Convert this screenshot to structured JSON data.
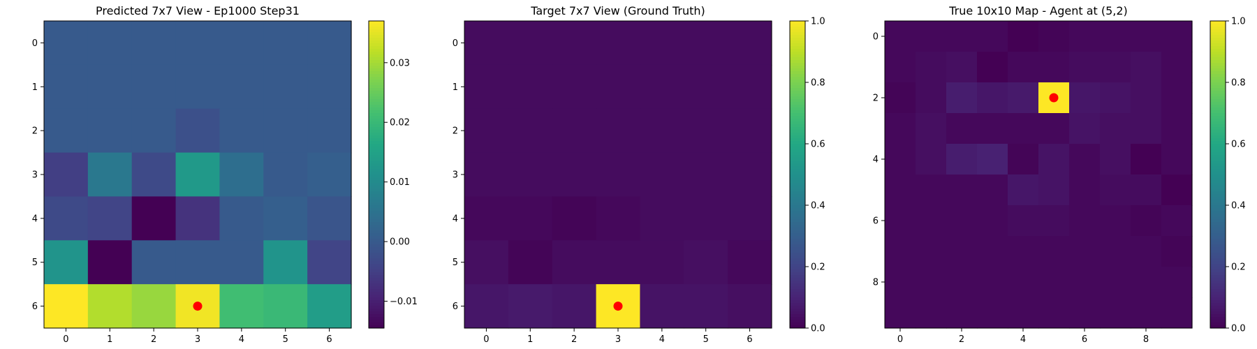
{
  "chart_data": [
    {
      "type": "heatmap",
      "title": "Predicted 7x7 View - Ep1000 Step31",
      "xticks": [
        0,
        1,
        2,
        3,
        4,
        5,
        6
      ],
      "yticks": [
        0,
        1,
        2,
        3,
        4,
        5,
        6
      ],
      "colormap": "viridis",
      "vmin": -0.0145,
      "vmax": 0.037,
      "colorbar_ticks": [
        "0.03",
        "0.02",
        "0.01",
        "0.00",
        "−0.01"
      ],
      "colorbar_tick_values": [
        0.03,
        0.02,
        0.01,
        0.0,
        -0.01
      ],
      "values": [
        [
          0.0,
          0.0,
          0.0,
          0.0,
          0.0,
          0.0,
          0.0
        ],
        [
          0.0,
          0.0,
          0.0,
          0.0,
          0.0,
          0.0,
          0.0
        ],
        [
          0.0,
          0.0,
          0.0,
          -0.002,
          0.0,
          0.0,
          0.0
        ],
        [
          -0.005,
          0.006,
          -0.003,
          0.013,
          0.004,
          0.0,
          0.001
        ],
        [
          -0.003,
          -0.004,
          -0.0145,
          -0.007,
          0.0,
          0.001,
          -0.001
        ],
        [
          0.012,
          -0.0145,
          0.0,
          0.0,
          0.0,
          0.012,
          -0.004
        ],
        [
          0.037,
          0.031,
          0.029,
          0.036,
          0.021,
          0.02,
          0.014
        ]
      ],
      "marker": {
        "x": 3,
        "y": 6,
        "color": "#ff0000"
      }
    },
    {
      "type": "heatmap",
      "title": "Target 7x7 View (Ground Truth)",
      "xticks": [
        0,
        1,
        2,
        3,
        4,
        5,
        6
      ],
      "yticks": [
        0,
        1,
        2,
        3,
        4,
        5,
        6
      ],
      "colormap": "viridis",
      "vmin": 0.0,
      "vmax": 1.0,
      "colorbar_ticks": [
        "1.0",
        "0.8",
        "0.6",
        "0.4",
        "0.2",
        "0.0"
      ],
      "colorbar_tick_values": [
        1.0,
        0.8,
        0.6,
        0.4,
        0.2,
        0.0
      ],
      "values": [
        [
          0.03,
          0.03,
          0.03,
          0.03,
          0.03,
          0.03,
          0.03
        ],
        [
          0.03,
          0.03,
          0.03,
          0.03,
          0.03,
          0.03,
          0.03
        ],
        [
          0.03,
          0.03,
          0.03,
          0.03,
          0.03,
          0.03,
          0.03
        ],
        [
          0.03,
          0.03,
          0.03,
          0.03,
          0.03,
          0.03,
          0.03
        ],
        [
          0.02,
          0.02,
          0.01,
          0.02,
          0.03,
          0.03,
          0.03
        ],
        [
          0.04,
          0.01,
          0.03,
          0.03,
          0.03,
          0.04,
          0.02
        ],
        [
          0.06,
          0.07,
          0.06,
          1.0,
          0.05,
          0.05,
          0.04
        ]
      ],
      "marker": {
        "x": 3,
        "y": 6,
        "color": "#ff0000"
      }
    },
    {
      "type": "heatmap",
      "title": "True 10x10 Map - Agent at (5,2)",
      "xticks": [
        0,
        2,
        4,
        6,
        8
      ],
      "yticks": [
        0,
        2,
        4,
        6,
        8
      ],
      "colormap": "viridis",
      "vmin": 0.0,
      "vmax": 1.0,
      "colorbar_ticks": [
        "1.0",
        "0.8",
        "0.6",
        "0.4",
        "0.2",
        "0.0"
      ],
      "colorbar_tick_values": [
        1.0,
        0.8,
        0.6,
        0.4,
        0.2,
        0.0
      ],
      "values": [
        [
          0.02,
          0.02,
          0.02,
          0.02,
          0.0,
          0.01,
          0.02,
          0.02,
          0.02,
          0.02
        ],
        [
          0.02,
          0.03,
          0.04,
          0.0,
          0.02,
          0.02,
          0.03,
          0.03,
          0.04,
          0.02
        ],
        [
          0.01,
          0.03,
          0.08,
          0.06,
          0.07,
          1.0,
          0.06,
          0.05,
          0.04,
          0.02
        ],
        [
          0.02,
          0.04,
          0.02,
          0.02,
          0.02,
          0.02,
          0.05,
          0.04,
          0.04,
          0.02
        ],
        [
          0.02,
          0.04,
          0.08,
          0.09,
          0.01,
          0.05,
          0.02,
          0.04,
          0.0,
          0.02
        ],
        [
          0.02,
          0.02,
          0.02,
          0.02,
          0.06,
          0.05,
          0.02,
          0.03,
          0.03,
          0.0
        ],
        [
          0.02,
          0.02,
          0.02,
          0.02,
          0.03,
          0.03,
          0.02,
          0.02,
          0.01,
          0.02
        ],
        [
          0.02,
          0.02,
          0.02,
          0.02,
          0.02,
          0.02,
          0.02,
          0.02,
          0.02,
          0.01
        ],
        [
          0.02,
          0.02,
          0.02,
          0.02,
          0.02,
          0.02,
          0.02,
          0.02,
          0.02,
          0.02
        ],
        [
          0.02,
          0.02,
          0.02,
          0.02,
          0.02,
          0.02,
          0.02,
          0.02,
          0.02,
          0.02
        ]
      ],
      "marker": {
        "x": 5,
        "y": 2,
        "color": "#ff0000"
      }
    }
  ]
}
